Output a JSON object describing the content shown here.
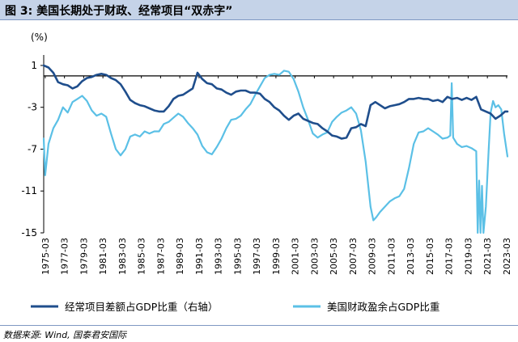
{
  "figure": {
    "title": "图 3:  美国长期处于财政、经常项目“双赤字”",
    "source": "数据来源: Wind, 国泰君安国际"
  },
  "colors": {
    "current_account": "#1f4e8c",
    "fiscal": "#5bc0e6",
    "axis": "#000000",
    "title_bg": "#c5d3e8"
  },
  "chart_data": {
    "type": "line",
    "ylabel": "(%)",
    "ylim": [
      -15,
      2
    ],
    "yticks": [
      1,
      -3,
      -7,
      -11,
      -15
    ],
    "ytick_labels": [
      "1",
      "-3",
      "-7",
      "-11",
      "-15"
    ],
    "x_range": [
      1975.0,
      2023.25
    ],
    "xtick_labels": [
      "1975-03",
      "1977-03",
      "1979-03",
      "1981-03",
      "1983-03",
      "1985-03",
      "1987-03",
      "1989-03",
      "1991-03",
      "1993-03",
      "1995-03",
      "1997-03",
      "1999-03",
      "2001-03",
      "2003-03",
      "2005-03",
      "2007-03",
      "2009-03",
      "2011-03",
      "2013-03",
      "2015-03",
      "2017-03",
      "2019-03",
      "2021-03",
      "2023-03"
    ],
    "legend_position": "bottom",
    "grid": false,
    "series": [
      {
        "name": "经常项目差额占GDP比重（右轴）",
        "color": "#1f4e8c",
        "points": [
          [
            1975.0,
            1.0
          ],
          [
            1975.5,
            0.8
          ],
          [
            1976.0,
            0.3
          ],
          [
            1976.5,
            -0.6
          ],
          [
            1977.0,
            -0.8
          ],
          [
            1977.5,
            -0.9
          ],
          [
            1978.0,
            -1.2
          ],
          [
            1978.5,
            -1.0
          ],
          [
            1979.0,
            -0.5
          ],
          [
            1979.5,
            -0.2
          ],
          [
            1980.0,
            -0.1
          ],
          [
            1980.5,
            0.1
          ],
          [
            1981.0,
            0.2
          ],
          [
            1981.5,
            0.1
          ],
          [
            1982.0,
            -0.2
          ],
          [
            1982.5,
            -0.4
          ],
          [
            1983.0,
            -0.8
          ],
          [
            1983.5,
            -1.5
          ],
          [
            1984.0,
            -2.3
          ],
          [
            1984.5,
            -2.6
          ],
          [
            1985.0,
            -2.8
          ],
          [
            1985.5,
            -2.9
          ],
          [
            1986.0,
            -3.1
          ],
          [
            1986.5,
            -3.3
          ],
          [
            1987.0,
            -3.4
          ],
          [
            1987.5,
            -3.4
          ],
          [
            1988.0,
            -2.9
          ],
          [
            1988.5,
            -2.2
          ],
          [
            1989.0,
            -1.9
          ],
          [
            1989.5,
            -1.8
          ],
          [
            1990.0,
            -1.5
          ],
          [
            1990.5,
            -1.2
          ],
          [
            1991.0,
            0.3
          ],
          [
            1991.5,
            -0.3
          ],
          [
            1992.0,
            -0.7
          ],
          [
            1992.5,
            -0.8
          ],
          [
            1993.0,
            -1.2
          ],
          [
            1993.5,
            -1.3
          ],
          [
            1994.0,
            -1.6
          ],
          [
            1994.5,
            -1.8
          ],
          [
            1995.0,
            -1.5
          ],
          [
            1995.5,
            -1.4
          ],
          [
            1996.0,
            -1.4
          ],
          [
            1996.5,
            -1.6
          ],
          [
            1997.0,
            -1.6
          ],
          [
            1997.5,
            -1.7
          ],
          [
            1998.0,
            -2.2
          ],
          [
            1998.5,
            -2.5
          ],
          [
            1999.0,
            -3.0
          ],
          [
            1999.5,
            -3.3
          ],
          [
            2000.0,
            -3.8
          ],
          [
            2000.5,
            -4.2
          ],
          [
            2001.0,
            -3.8
          ],
          [
            2001.5,
            -3.6
          ],
          [
            2002.0,
            -4.1
          ],
          [
            2002.5,
            -4.3
          ],
          [
            2003.0,
            -4.5
          ],
          [
            2003.5,
            -4.6
          ],
          [
            2004.0,
            -5.0
          ],
          [
            2004.5,
            -5.3
          ],
          [
            2005.0,
            -5.7
          ],
          [
            2005.5,
            -5.8
          ],
          [
            2006.0,
            -6.0
          ],
          [
            2006.5,
            -5.9
          ],
          [
            2007.0,
            -5.0
          ],
          [
            2007.5,
            -4.9
          ],
          [
            2008.0,
            -4.6
          ],
          [
            2008.5,
            -4.8
          ],
          [
            2009.0,
            -2.8
          ],
          [
            2009.5,
            -2.5
          ],
          [
            2010.0,
            -2.8
          ],
          [
            2010.5,
            -3.1
          ],
          [
            2011.0,
            -2.9
          ],
          [
            2011.5,
            -2.8
          ],
          [
            2012.0,
            -2.7
          ],
          [
            2012.5,
            -2.5
          ],
          [
            2013.0,
            -2.2
          ],
          [
            2013.5,
            -2.2
          ],
          [
            2014.0,
            -2.1
          ],
          [
            2014.5,
            -2.2
          ],
          [
            2015.0,
            -2.2
          ],
          [
            2015.5,
            -2.4
          ],
          [
            2016.0,
            -2.3
          ],
          [
            2016.5,
            -2.5
          ],
          [
            2017.0,
            -2.0
          ],
          [
            2017.5,
            -2.2
          ],
          [
            2018.0,
            -2.1
          ],
          [
            2018.5,
            -2.3
          ],
          [
            2019.0,
            -2.1
          ],
          [
            2019.5,
            -2.3
          ],
          [
            2020.0,
            -2.0
          ],
          [
            2020.5,
            -3.2
          ],
          [
            2021.0,
            -3.4
          ],
          [
            2021.5,
            -3.6
          ],
          [
            2022.0,
            -4.1
          ],
          [
            2022.5,
            -3.8
          ],
          [
            2023.0,
            -3.4
          ],
          [
            2023.25,
            -3.4
          ]
        ]
      },
      {
        "name": "美国财政盈余占GDP比重",
        "color": "#5bc0e6",
        "points": [
          [
            1975.0,
            -6.0
          ],
          [
            1975.15,
            -9.5
          ],
          [
            1975.5,
            -6.5
          ],
          [
            1976.0,
            -5.0
          ],
          [
            1976.5,
            -4.2
          ],
          [
            1977.0,
            -3.0
          ],
          [
            1977.5,
            -3.5
          ],
          [
            1978.0,
            -2.5
          ],
          [
            1978.5,
            -2.2
          ],
          [
            1979.0,
            -1.9
          ],
          [
            1979.5,
            -2.4
          ],
          [
            1980.0,
            -3.3
          ],
          [
            1980.5,
            -3.8
          ],
          [
            1981.0,
            -3.6
          ],
          [
            1981.5,
            -3.9
          ],
          [
            1982.0,
            -5.5
          ],
          [
            1982.5,
            -7.0
          ],
          [
            1983.0,
            -7.6
          ],
          [
            1983.5,
            -7.0
          ],
          [
            1984.0,
            -5.8
          ],
          [
            1984.5,
            -5.6
          ],
          [
            1985.0,
            -5.8
          ],
          [
            1985.5,
            -5.3
          ],
          [
            1986.0,
            -5.5
          ],
          [
            1986.5,
            -5.3
          ],
          [
            1987.0,
            -5.3
          ],
          [
            1987.5,
            -4.6
          ],
          [
            1988.0,
            -4.4
          ],
          [
            1988.5,
            -4.0
          ],
          [
            1989.0,
            -3.6
          ],
          [
            1989.5,
            -3.9
          ],
          [
            1990.0,
            -4.5
          ],
          [
            1990.5,
            -5.0
          ],
          [
            1991.0,
            -5.6
          ],
          [
            1991.5,
            -6.7
          ],
          [
            1992.0,
            -7.3
          ],
          [
            1992.5,
            -7.5
          ],
          [
            1993.0,
            -6.8
          ],
          [
            1993.5,
            -6.0
          ],
          [
            1994.0,
            -5.0
          ],
          [
            1994.5,
            -4.2
          ],
          [
            1995.0,
            -4.1
          ],
          [
            1995.5,
            -3.8
          ],
          [
            1996.0,
            -3.2
          ],
          [
            1996.5,
            -2.7
          ],
          [
            1997.0,
            -1.8
          ],
          [
            1997.5,
            -1.0
          ],
          [
            1998.0,
            -0.2
          ],
          [
            1998.5,
            0.1
          ],
          [
            1999.0,
            0.2
          ],
          [
            1999.5,
            0.1
          ],
          [
            2000.0,
            0.5
          ],
          [
            2000.5,
            0.4
          ],
          [
            2001.0,
            -0.3
          ],
          [
            2001.5,
            -1.5
          ],
          [
            2002.0,
            -3.0
          ],
          [
            2002.5,
            -4.2
          ],
          [
            2003.0,
            -5.5
          ],
          [
            2003.5,
            -5.9
          ],
          [
            2004.0,
            -5.6
          ],
          [
            2004.5,
            -5.4
          ],
          [
            2005.0,
            -4.4
          ],
          [
            2005.5,
            -3.9
          ],
          [
            2006.0,
            -3.5
          ],
          [
            2006.5,
            -3.3
          ],
          [
            2007.0,
            -3.0
          ],
          [
            2007.5,
            -3.6
          ],
          [
            2008.0,
            -5.2
          ],
          [
            2008.5,
            -8.2
          ],
          [
            2009.0,
            -12.5
          ],
          [
            2009.3,
            -13.8
          ],
          [
            2009.6,
            -13.5
          ],
          [
            2010.0,
            -13.0
          ],
          [
            2010.5,
            -12.5
          ],
          [
            2011.0,
            -12.0
          ],
          [
            2011.5,
            -11.7
          ],
          [
            2012.0,
            -11.5
          ],
          [
            2012.5,
            -10.8
          ],
          [
            2013.0,
            -8.8
          ],
          [
            2013.5,
            -6.5
          ],
          [
            2014.0,
            -5.4
          ],
          [
            2014.5,
            -5.3
          ],
          [
            2015.0,
            -5.0
          ],
          [
            2015.5,
            -5.3
          ],
          [
            2016.0,
            -5.6
          ],
          [
            2016.5,
            -6.0
          ],
          [
            2017.0,
            -5.9
          ],
          [
            2017.3,
            -5.7
          ],
          [
            2017.45,
            -0.7
          ],
          [
            2017.6,
            -5.9
          ],
          [
            2018.0,
            -6.5
          ],
          [
            2018.5,
            -6.8
          ],
          [
            2019.0,
            -6.7
          ],
          [
            2019.5,
            -6.9
          ],
          [
            2020.0,
            -7.2
          ],
          [
            2020.15,
            -15.0
          ],
          [
            2020.3,
            -10.0
          ],
          [
            2020.45,
            -15.0
          ],
          [
            2020.6,
            -10.5
          ],
          [
            2020.75,
            -15.0
          ],
          [
            2021.0,
            -12.5
          ],
          [
            2021.3,
            -7.0
          ],
          [
            2021.5,
            -3.5
          ],
          [
            2021.75,
            -2.4
          ],
          [
            2022.0,
            -3.0
          ],
          [
            2022.3,
            -2.8
          ],
          [
            2022.6,
            -3.2
          ],
          [
            2022.9,
            -5.5
          ],
          [
            2023.25,
            -7.7
          ]
        ]
      }
    ]
  }
}
